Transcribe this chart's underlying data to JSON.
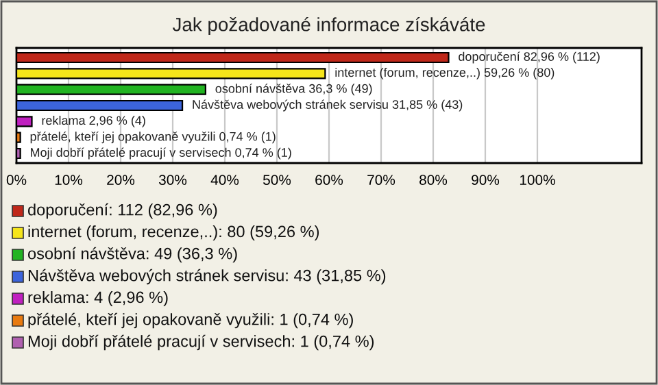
{
  "chart_data": {
    "type": "bar",
    "orientation": "horizontal",
    "title": "Jak požadované informace získáváte",
    "categories": [
      null,
      null,
      null,
      null,
      null,
      null,
      null
    ],
    "values": [
      82.96,
      59.26,
      36.3,
      31.85,
      2.96,
      0.74,
      0.74
    ],
    "colors": [
      "#c0281a",
      "#f5e51a",
      "#22b422",
      "#3c64dc",
      "#c020c0",
      "#e87a10",
      "#b060b0"
    ],
    "value_labels": [
      "doporučení 82,96 % (112)",
      "internet (forum, recenze,..) 59,26 % (80)",
      "osobní návštěva 36,3 % (49)",
      "Návštěva webových stránek servisu 31,85 % (43)",
      "reklama 2,96 % (4)",
      "přátelé, kteří jej opakovaně využili 0,74 % (1)",
      "Moji dobří přátelé pracují v servisech 0,74 % (1)"
    ],
    "xlim": [
      0,
      120
    ],
    "xticks": [
      {
        "value": 0,
        "label": "0%"
      },
      {
        "value": 10,
        "label": "10%"
      },
      {
        "value": 20,
        "label": "20%"
      },
      {
        "value": 30,
        "label": "30%"
      },
      {
        "value": 40,
        "label": "40%"
      },
      {
        "value": 50,
        "label": "50%"
      },
      {
        "value": 60,
        "label": "60%"
      },
      {
        "value": 70,
        "label": "70%"
      },
      {
        "value": 80,
        "label": "80%"
      },
      {
        "value": 90,
        "label": "90%"
      },
      {
        "value": 100,
        "label": "100%"
      }
    ],
    "grid": "x",
    "annotations": [
      "doporučení: 112 (82,96 %)",
      "internet (forum, recenze,..): 80 (59,26 %)",
      "osobní návštěva: 49 (36,3 %)",
      "Návštěva webových stránek servisu: 43 (31,85 %)",
      "reklama: 4 (2,96 %)",
      "přátelé, kteří jej opakovaně využili: 1 (0,74 %)",
      "Moji dobří přátelé pracují v servisech: 1 (0,74 %)"
    ]
  }
}
